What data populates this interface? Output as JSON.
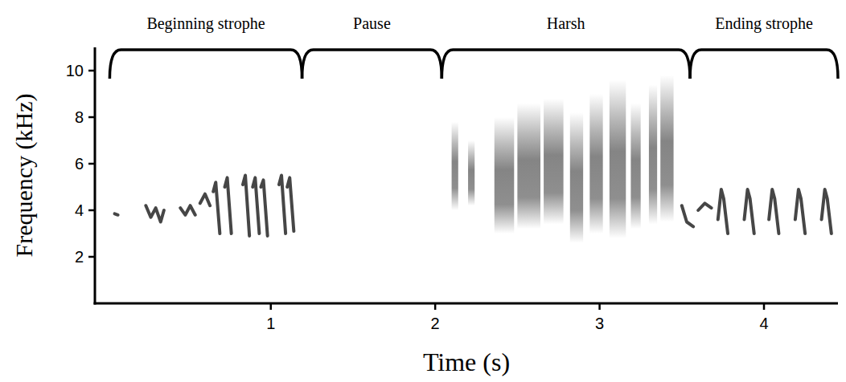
{
  "chart_data": {
    "type": "spectrogram",
    "x_label": "Time (s)",
    "y_label": "Frequency (kHz)",
    "xlim": [
      -0.07,
      4.45
    ],
    "ylim": [
      0,
      11
    ],
    "xticks": [
      1,
      2,
      3,
      4
    ],
    "yticks": [
      2,
      4,
      6,
      8,
      10
    ],
    "sections": [
      {
        "label": "Beginning strophe",
        "start": 0.02,
        "end": 1.19
      },
      {
        "label": "Pause",
        "start": 1.19,
        "end": 2.04
      },
      {
        "label": "Harsh",
        "start": 2.04,
        "end": 3.55
      },
      {
        "label": "Ending strophe",
        "start": 3.55,
        "end": 4.45
      }
    ],
    "syllables": [
      {
        "time": [
          0.05,
          0.07
        ],
        "freq": [
          3.85,
          3.8
        ]
      },
      {
        "time": [
          0.24,
          0.27,
          0.3,
          0.33,
          0.35
        ],
        "freq": [
          4.2,
          3.7,
          4.1,
          3.5,
          4.0
        ]
      },
      {
        "time": [
          0.45,
          0.48,
          0.51,
          0.54
        ],
        "freq": [
          4.1,
          3.8,
          4.2,
          3.8
        ]
      },
      {
        "time": [
          0.57,
          0.6,
          0.63
        ],
        "freq": [
          4.3,
          4.7,
          4.2
        ]
      },
      {
        "time": [
          0.65,
          0.665,
          0.69
        ],
        "freq": [
          4.8,
          5.2,
          3.0
        ]
      },
      {
        "time": [
          0.72,
          0.735,
          0.76
        ],
        "freq": [
          5.0,
          5.4,
          3.0
        ]
      },
      {
        "time": [
          0.83,
          0.845,
          0.87
        ],
        "freq": [
          5.1,
          5.5,
          2.9
        ]
      },
      {
        "time": [
          0.89,
          0.905,
          0.93
        ],
        "freq": [
          5.0,
          5.4,
          3.0
        ]
      },
      {
        "time": [
          0.94,
          0.955,
          0.98
        ],
        "freq": [
          5.0,
          5.3,
          2.9
        ]
      },
      {
        "time": [
          1.05,
          1.065,
          1.09
        ],
        "freq": [
          5.1,
          5.5,
          3.0
        ]
      },
      {
        "time": [
          1.1,
          1.115,
          1.14
        ],
        "freq": [
          5.0,
          5.4,
          3.1
        ]
      },
      {
        "time": [
          3.5,
          3.53,
          3.57
        ],
        "freq": [
          4.2,
          3.5,
          3.3
        ]
      },
      {
        "time": [
          3.6,
          3.64,
          3.68
        ],
        "freq": [
          4.0,
          4.3,
          4.1
        ]
      },
      {
        "time": [
          3.72,
          3.74,
          3.755,
          3.78
        ],
        "freq": [
          3.6,
          4.9,
          4.5,
          3.0
        ]
      },
      {
        "time": [
          3.88,
          3.9,
          3.915,
          3.94
        ],
        "freq": [
          3.6,
          4.9,
          4.5,
          3.0
        ]
      },
      {
        "time": [
          4.03,
          4.05,
          4.065,
          4.09
        ],
        "freq": [
          3.6,
          4.9,
          4.5,
          3.0
        ]
      },
      {
        "time": [
          4.19,
          4.21,
          4.225,
          4.25
        ],
        "freq": [
          3.6,
          4.9,
          4.5,
          3.0
        ]
      },
      {
        "time": [
          4.35,
          4.37,
          4.385,
          4.41
        ],
        "freq": [
          3.6,
          4.9,
          4.5,
          3.0
        ]
      }
    ],
    "harsh": [
      {
        "time": 2.1,
        "duration": 0.04,
        "freq_low": 4.0,
        "freq_high": 7.8
      },
      {
        "time": 2.2,
        "duration": 0.04,
        "freq_low": 4.2,
        "freq_high": 7.0
      },
      {
        "time": 2.36,
        "duration": 0.12,
        "freq_low": 3.0,
        "freq_high": 8.0
      },
      {
        "time": 2.5,
        "duration": 0.14,
        "freq_low": 3.2,
        "freq_high": 8.6
      },
      {
        "time": 2.66,
        "duration": 0.12,
        "freq_low": 3.4,
        "freq_high": 8.8
      },
      {
        "time": 2.82,
        "duration": 0.08,
        "freq_low": 2.6,
        "freq_high": 8.2
      },
      {
        "time": 2.94,
        "duration": 0.08,
        "freq_low": 3.0,
        "freq_high": 9.0
      },
      {
        "time": 3.06,
        "duration": 0.1,
        "freq_low": 2.8,
        "freq_high": 9.6
      },
      {
        "time": 3.19,
        "duration": 0.06,
        "freq_low": 3.2,
        "freq_high": 8.6
      },
      {
        "time": 3.3,
        "duration": 0.05,
        "freq_low": 3.4,
        "freq_high": 9.4
      },
      {
        "time": 3.37,
        "duration": 0.08,
        "freq_low": 3.5,
        "freq_high": 9.8
      }
    ]
  }
}
